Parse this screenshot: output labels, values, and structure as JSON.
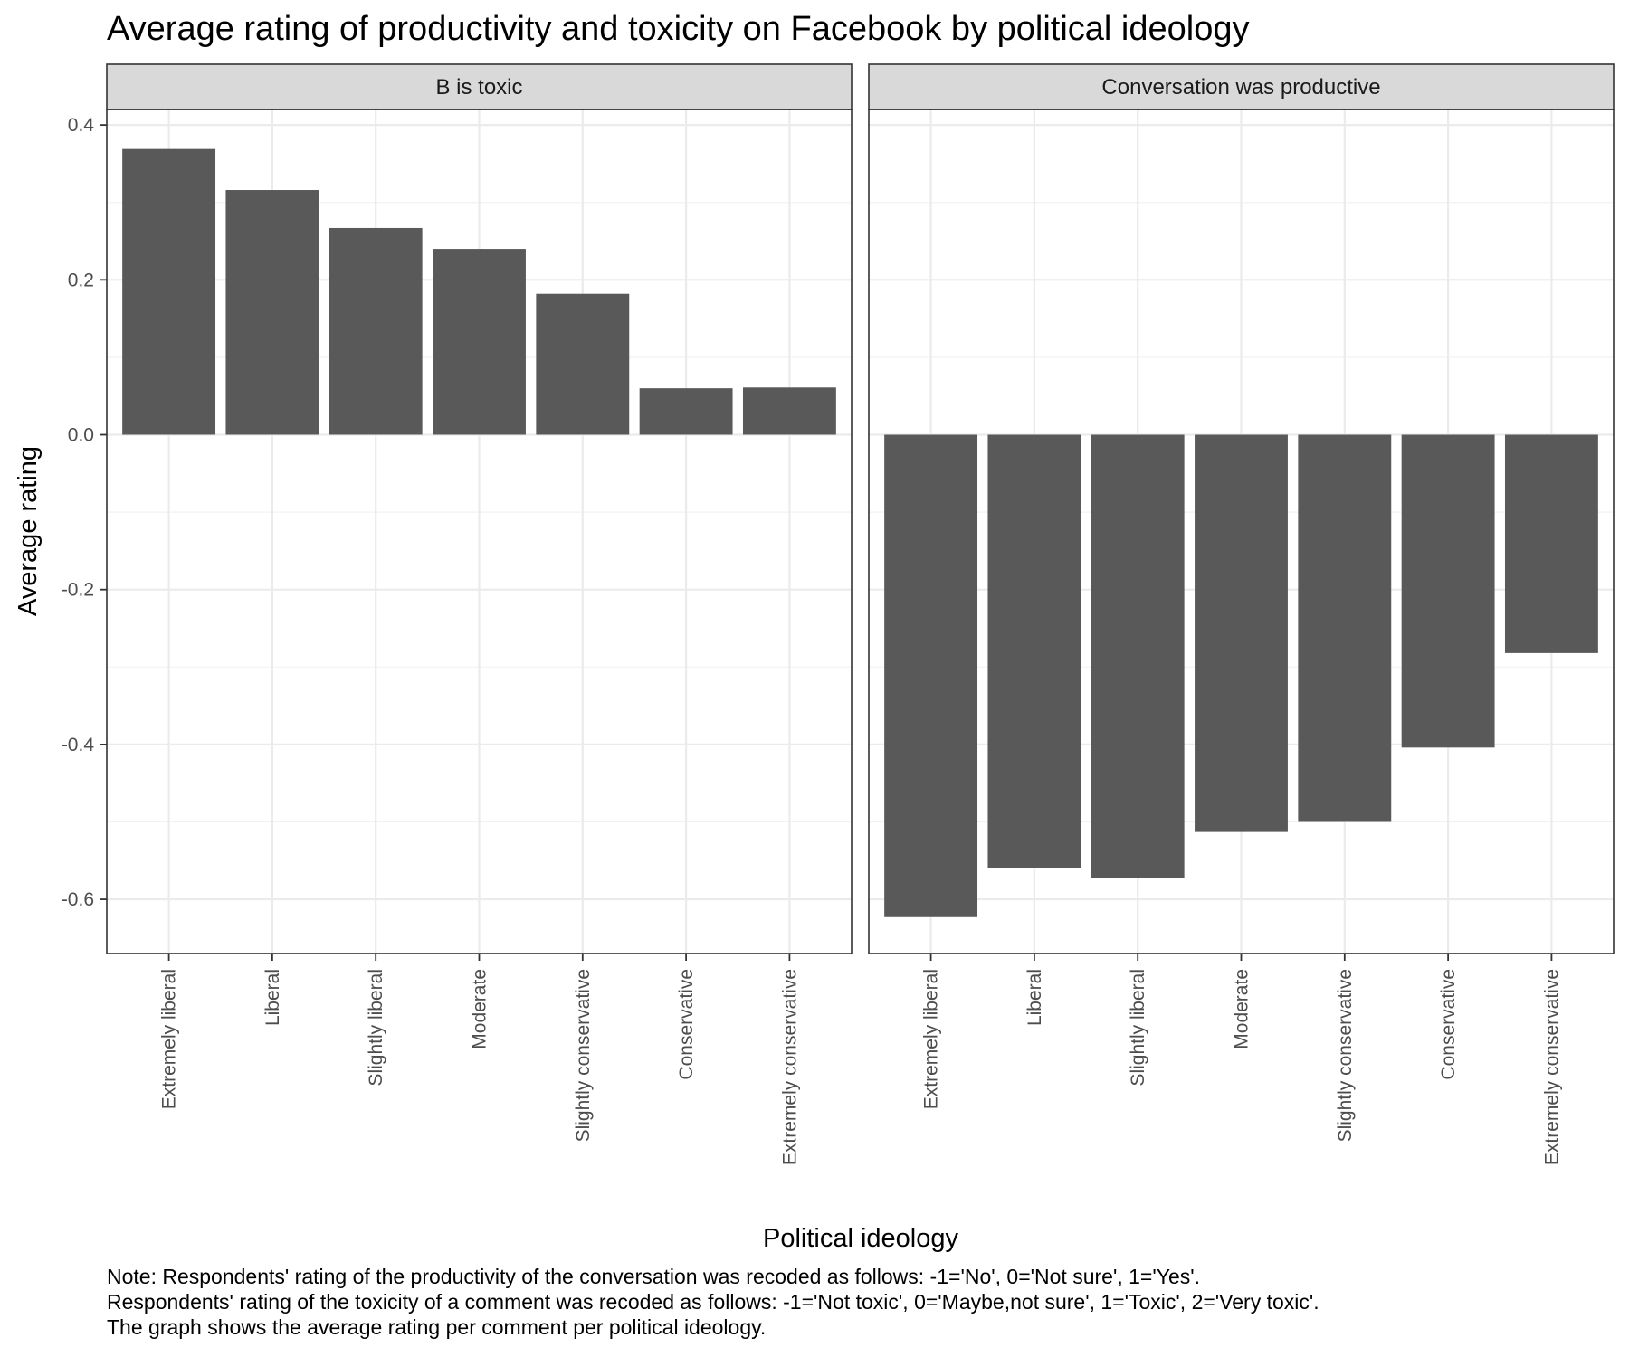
{
  "chart_data": {
    "type": "bar",
    "title": "Average rating of productivity and toxicity on Facebook by political ideology",
    "xlabel": "Political ideology",
    "ylabel": "Average rating",
    "ylim": [
      -0.67,
      0.42
    ],
    "yticks": [
      0.4,
      0.2,
      0.0,
      -0.2,
      -0.4,
      -0.6
    ],
    "ytick_labels": [
      "0.4",
      "0.2",
      "0.0",
      "-0.2",
      "-0.4",
      "-0.6"
    ],
    "grid": true,
    "bar_color": "#595959",
    "categories": [
      "Extremely liberal",
      "Liberal",
      "Slightly liberal",
      "Moderate",
      "Slightly conservative",
      "Conservative",
      "Extremely conservative"
    ],
    "panels": [
      {
        "strip": "B is toxic",
        "values": [
          0.369,
          0.316,
          0.267,
          0.24,
          0.182,
          0.06,
          0.061
        ]
      },
      {
        "strip": "Conversation was productive",
        "values": [
          -0.623,
          -0.559,
          -0.572,
          -0.513,
          -0.5,
          -0.404,
          -0.282
        ]
      }
    ],
    "note_lines": [
      "Note: Respondents' rating of the productivity of the conversation was recoded as follows: -1='No', 0='Not sure', 1='Yes'.",
      "Respondents' rating of the toxicity of a comment was recoded as follows: -1='Not toxic', 0='Maybe,not sure', 1='Toxic', 2='Very toxic'.",
      "The graph shows the average rating per comment per political ideology."
    ]
  }
}
